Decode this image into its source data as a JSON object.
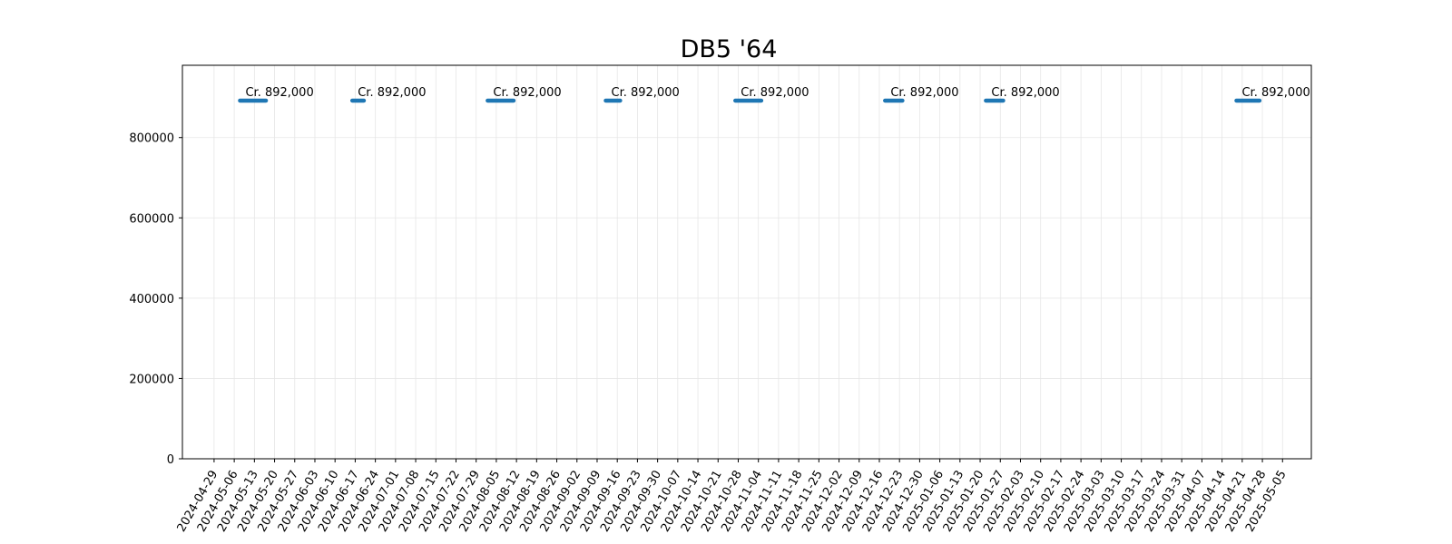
{
  "chart_data": {
    "type": "line",
    "title": "DB5 '64",
    "xlabel": "",
    "ylabel": "",
    "ylim": [
      0,
      980000
    ],
    "xlim": [
      "2024-04-18",
      "2025-05-15"
    ],
    "y_ticks": [
      0,
      200000,
      400000,
      600000,
      800000
    ],
    "x_ticks": [
      "2024-04-29",
      "2024-05-06",
      "2024-05-13",
      "2024-05-20",
      "2024-05-27",
      "2024-06-03",
      "2024-06-10",
      "2024-06-17",
      "2024-06-24",
      "2024-07-01",
      "2024-07-08",
      "2024-07-15",
      "2024-07-22",
      "2024-07-29",
      "2024-08-05",
      "2024-08-12",
      "2024-08-19",
      "2024-08-26",
      "2024-09-02",
      "2024-09-09",
      "2024-09-16",
      "2024-09-23",
      "2024-09-30",
      "2024-10-07",
      "2024-10-14",
      "2024-10-21",
      "2024-10-28",
      "2024-11-04",
      "2024-11-11",
      "2024-11-18",
      "2024-11-25",
      "2024-12-02",
      "2024-12-09",
      "2024-12-16",
      "2024-12-23",
      "2024-12-30",
      "2025-01-06",
      "2025-01-13",
      "2025-01-20",
      "2025-01-27",
      "2025-02-03",
      "2025-02-10",
      "2025-02-17",
      "2025-02-24",
      "2025-03-03",
      "2025-03-10",
      "2025-03-17",
      "2025-03-24",
      "2025-03-31",
      "2025-04-07",
      "2025-04-14",
      "2025-04-21",
      "2025-04-28",
      "2025-05-05"
    ],
    "grid": true,
    "color": "#1f77b4",
    "segments": [
      {
        "start": "2024-05-08",
        "end": "2024-05-17",
        "value": 892000,
        "label": "Cr. 892,000"
      },
      {
        "start": "2024-06-16",
        "end": "2024-06-20",
        "value": 892000,
        "label": "Cr. 892,000"
      },
      {
        "start": "2024-08-02",
        "end": "2024-08-11",
        "value": 892000,
        "label": "Cr. 892,000"
      },
      {
        "start": "2024-09-12",
        "end": "2024-09-17",
        "value": 892000,
        "label": "Cr. 892,000"
      },
      {
        "start": "2024-10-27",
        "end": "2024-11-05",
        "value": 892000,
        "label": "Cr. 892,000"
      },
      {
        "start": "2024-12-18",
        "end": "2024-12-24",
        "value": 892000,
        "label": "Cr. 892,000"
      },
      {
        "start": "2025-01-22",
        "end": "2025-01-28",
        "value": 892000,
        "label": "Cr. 892,000"
      },
      {
        "start": "2025-04-19",
        "end": "2025-04-27",
        "value": 892000,
        "label": "Cr. 892,000"
      }
    ]
  }
}
